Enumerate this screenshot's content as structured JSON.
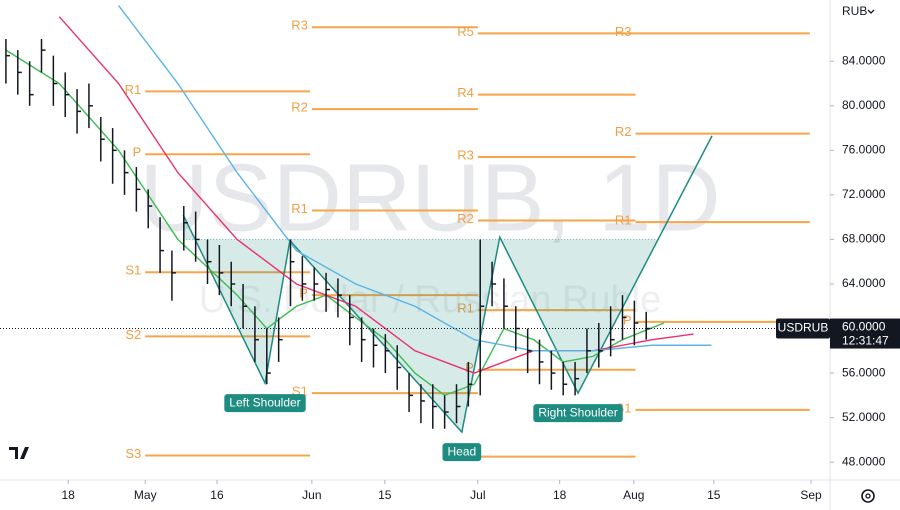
{
  "chart_data": {
    "type": "ohlc",
    "symbol": "USDRUB",
    "currency": "RUB",
    "watermark": "USDRUB, 1D",
    "watermark_subtitle": "U.S. Dollar / Russian Ruble",
    "last_price": {
      "value": 60,
      "label": "60.0000"
    },
    "countdown": "12:31:47",
    "xlim": [
      0,
      140
    ],
    "ylim": [
      46.4,
      89.5
    ],
    "yticks": [
      {
        "value": 48,
        "label": "48.0000"
      },
      {
        "value": 52,
        "label": "52.0000"
      },
      {
        "value": 56,
        "label": "56.0000"
      },
      {
        "value": 60,
        "label": "60.0000"
      },
      {
        "value": 64,
        "label": "64.0000"
      },
      {
        "value": 68,
        "label": "68.0000"
      },
      {
        "value": 72,
        "label": "72.0000"
      },
      {
        "value": 76,
        "label": "76.0000"
      },
      {
        "value": 80,
        "label": "80.0000"
      },
      {
        "value": 84,
        "label": "84.0000"
      }
    ],
    "xticks": [
      {
        "value": 11.5,
        "label": "18"
      },
      {
        "value": 24.5,
        "label": "May"
      },
      {
        "value": 36.6,
        "label": "16"
      },
      {
        "value": 52.6,
        "label": "Jun"
      },
      {
        "value": 64.9,
        "label": "15"
      },
      {
        "value": 80.6,
        "label": "Jul"
      },
      {
        "value": 94.4,
        "label": "18"
      },
      {
        "value": 106.9,
        "label": "Aug"
      },
      {
        "value": 120.4,
        "label": "15"
      },
      {
        "value": 136.8,
        "label": "Sep"
      }
    ],
    "x": [
      1,
      3,
      5,
      7,
      9,
      11,
      13,
      15,
      17,
      19,
      21,
      23,
      25,
      27,
      29,
      31,
      33,
      35,
      37,
      39,
      41,
      43,
      45,
      47,
      49,
      51,
      53,
      55,
      57,
      59,
      61,
      63,
      65,
      67,
      69,
      71,
      73,
      75,
      77,
      79,
      81,
      83,
      85,
      87,
      89,
      91,
      93,
      95,
      97,
      99,
      101,
      103,
      105,
      107,
      109
    ],
    "high": [
      86,
      85,
      84,
      86,
      84.5,
      83,
      81.5,
      82,
      79,
      78,
      76,
      74.5,
      72.5,
      70,
      67,
      71,
      70.5,
      68,
      67.5,
      66,
      64,
      62,
      60,
      61,
      68,
      66.5,
      65.5,
      65,
      64.5,
      63,
      61,
      60,
      59.5,
      58.5,
      56,
      55,
      55,
      54,
      55,
      57,
      68,
      66,
      64.5,
      62,
      60,
      59,
      58,
      57,
      57,
      60,
      60.5,
      62,
      63,
      62.5,
      61.5
    ],
    "low": [
      82,
      81,
      80,
      83,
      80,
      79,
      77.5,
      78,
      75,
      73,
      72,
      70.5,
      69,
      65,
      62.5,
      67,
      66,
      64,
      63,
      62,
      60,
      57,
      55,
      57,
      62,
      62.5,
      62.5,
      61.5,
      61,
      58.5,
      57,
      56.5,
      56,
      54.5,
      52.5,
      51.5,
      51,
      51,
      51.5,
      53,
      54,
      62,
      60,
      58,
      56,
      55,
      54.5,
      54,
      54,
      56,
      56.5,
      57.5,
      59,
      58.5,
      59
    ],
    "close": [
      84.5,
      83,
      81,
      85,
      82,
      81,
      79.5,
      80,
      77,
      76,
      74,
      72.5,
      71,
      67,
      65,
      69.5,
      68,
      66,
      65,
      64,
      62,
      59,
      56,
      59,
      66,
      64,
      64,
      63.5,
      63,
      61,
      59,
      58.5,
      58,
      56.5,
      54,
      53.5,
      53,
      52.5,
      53,
      55,
      62,
      64,
      62,
      60,
      58,
      57,
      56,
      55,
      55.5,
      58,
      58,
      59,
      61,
      60.5,
      60
    ],
    "moving_averages": [
      {
        "color": "#3dbb52",
        "x": [
          1,
          10,
          20,
          30,
          40,
          45,
          50,
          55,
          60,
          65,
          70,
          75,
          80,
          85,
          90,
          95,
          100,
          105,
          112
        ],
        "values": [
          85,
          82,
          76,
          68,
          63,
          60,
          62,
          63,
          61,
          59,
          56,
          54,
          55,
          60,
          59,
          57,
          57.5,
          59,
          60.5
        ]
      },
      {
        "color": "#e8336d",
        "x": [
          10,
          20,
          30,
          40,
          50,
          60,
          70,
          80,
          90,
          100,
          110,
          117
        ],
        "values": [
          88,
          82,
          74,
          68,
          64,
          62,
          58,
          56,
          58,
          58,
          59,
          59.5
        ]
      },
      {
        "color": "#5ab4e6",
        "x": [
          20,
          30,
          40,
          50,
          60,
          70,
          80,
          90,
          100,
          110,
          120
        ],
        "values": [
          89,
          82,
          74,
          67,
          64,
          62,
          59,
          58,
          58,
          58.5,
          58.5
        ]
      }
    ],
    "pivot_color": "#f5a54a",
    "pivots": [
      {
        "start": 24.5,
        "end": 52.3,
        "levels": [
          {
            "label": "R1",
            "value": 81.3
          },
          {
            "label": "P",
            "value": 75.65
          },
          {
            "label": "S1",
            "value": 65.05
          },
          {
            "label": "S2",
            "value": 59.3
          },
          {
            "label": "S3",
            "value": 48.6
          }
        ]
      },
      {
        "start": 52.6,
        "end": 80.6,
        "levels": [
          {
            "label": "R3",
            "value": 87.05
          },
          {
            "label": "R2",
            "value": 79.7
          },
          {
            "label": "R1",
            "value": 70.6
          },
          {
            "label": "P",
            "value": 63.0
          },
          {
            "label": "S1",
            "value": 54.2
          }
        ]
      },
      {
        "start": 80.6,
        "end": 107.2,
        "levels": [
          {
            "label": "R5",
            "value": 86.5
          },
          {
            "label": "R4",
            "value": 81.0
          },
          {
            "label": "R3",
            "value": 75.4
          },
          {
            "label": "R2",
            "value": 69.7
          },
          {
            "label": "R1",
            "value": 61.65
          },
          {
            "label": "P",
            "value": 56.3
          },
          {
            "label": "S1",
            "value": 48.5
          }
        ]
      },
      {
        "start": 107.2,
        "end": 136.6,
        "levels": [
          {
            "label": "R3",
            "value": 86.5
          },
          {
            "label": "R2",
            "value": 77.5
          },
          {
            "label": "R1",
            "value": 69.55
          },
          {
            "label": "P",
            "value": 60.6
          },
          {
            "label": "S1",
            "value": 52.7
          }
        ]
      }
    ],
    "pattern": {
      "color": "#1e8c80",
      "x": [
        30.9,
        44.7,
        48.9,
        77.9,
        84.3,
        97.5,
        120.1
      ],
      "values": [
        70.2,
        55.1,
        67.9,
        50.7,
        68.2,
        54.2,
        77.3
      ],
      "neckline": 68.0,
      "annotations": [
        "Left Shoulder",
        "Head",
        "Right Shoulder"
      ]
    }
  }
}
